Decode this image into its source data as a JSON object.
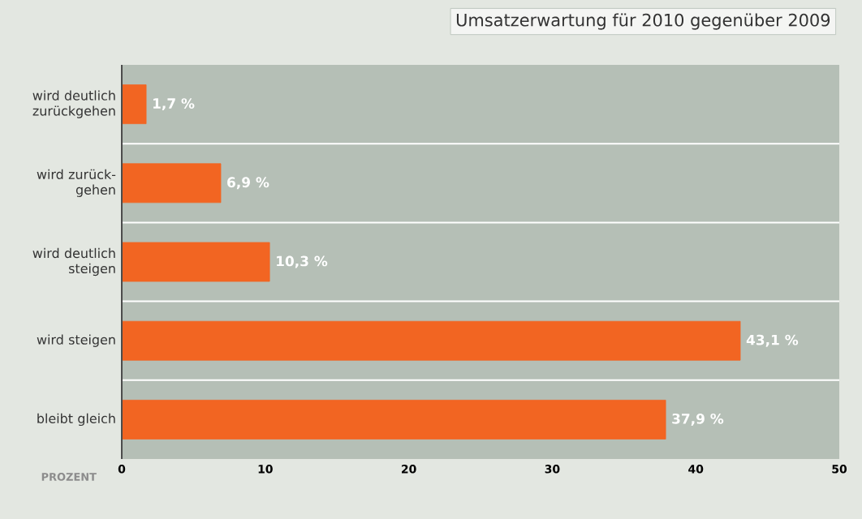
{
  "chart_data": {
    "type": "bar",
    "orientation": "horizontal",
    "title": "Umsatzerwartung für 2010 gegenüber 2009",
    "xlabel": "PROZENT",
    "categories": [
      "wird deutlich zurückgehen",
      "wird zurück-gehen",
      "wird deutlich steigen",
      "wird steigen",
      "bleibt gleich"
    ],
    "values": [
      1.7,
      6.9,
      10.3,
      43.1,
      37.9
    ],
    "value_labels": [
      "1,7 %",
      "6,9 %",
      "10,3 %",
      "43,1 %",
      "37,9 %"
    ],
    "color": "#f26522",
    "xlim": [
      0,
      50
    ],
    "xticks": [
      0,
      10,
      20,
      30,
      40,
      50
    ],
    "grid": "y"
  }
}
